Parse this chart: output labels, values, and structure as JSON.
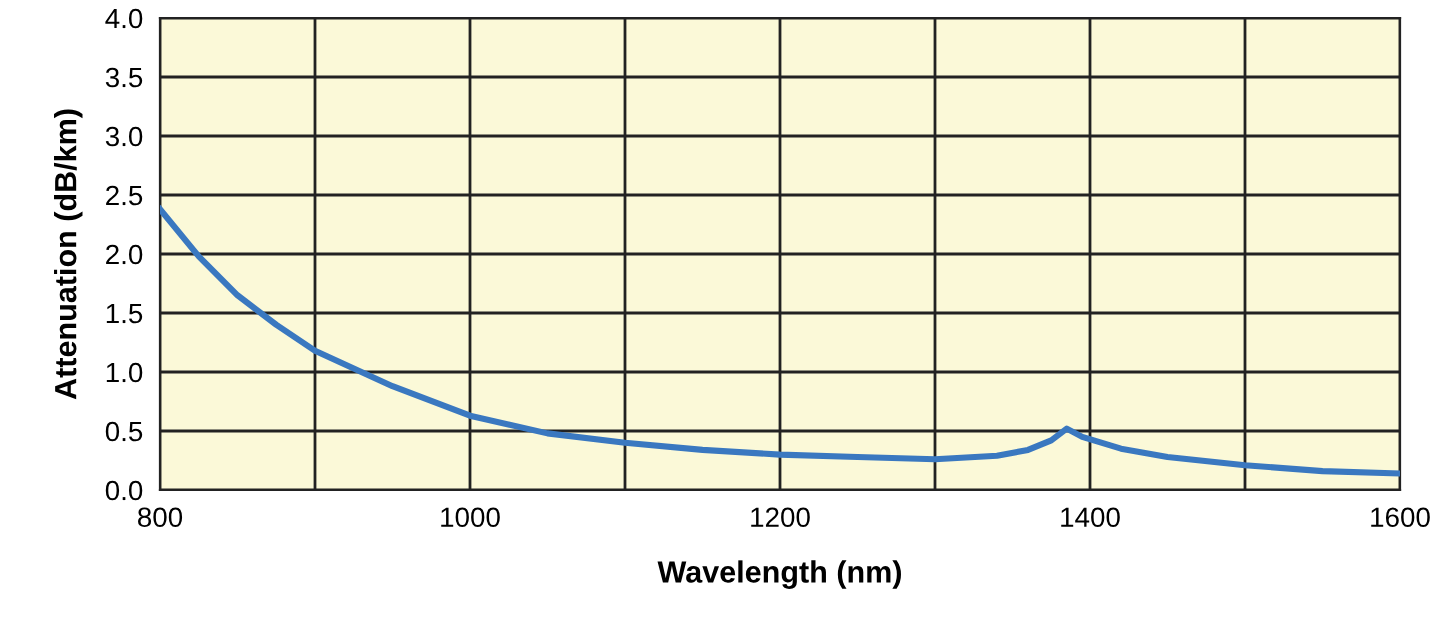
{
  "chart_data": {
    "type": "line",
    "xlabel": "Wavelength (nm)",
    "ylabel": "Attenuation (dB/km)",
    "xlim": [
      800,
      1600
    ],
    "ylim": [
      0,
      4.0
    ],
    "xticks": [
      800,
      {
        "value": 900,
        "label": null
      },
      1000,
      {
        "value": 1100,
        "label": null
      },
      1200,
      {
        "value": 1300,
        "label": null
      },
      1400,
      {
        "value": 1500,
        "label": null
      },
      1600
    ],
    "yticks": [
      {
        "value": 0,
        "label": "0.0"
      },
      0.5,
      {
        "value": 1,
        "label": "1.0"
      },
      1.5,
      {
        "value": 2,
        "label": "2.0"
      },
      2.5,
      {
        "value": 3,
        "label": "3.0"
      },
      3.5,
      {
        "value": 4,
        "label": "4.0"
      }
    ],
    "grid": true,
    "series": [
      {
        "color": "#3a78c0",
        "x": [
          800,
          825,
          850,
          875,
          900,
          950,
          1000,
          1050,
          1100,
          1150,
          1200,
          1250,
          1300,
          1340,
          1360,
          1375,
          1385,
          1395,
          1420,
          1450,
          1500,
          1550,
          1600
        ],
        "values": [
          2.38,
          1.98,
          1.65,
          1.4,
          1.18,
          0.88,
          0.63,
          0.48,
          0.4,
          0.34,
          0.3,
          0.28,
          0.26,
          0.29,
          0.34,
          0.42,
          0.52,
          0.45,
          0.35,
          0.28,
          0.21,
          0.16,
          0.14
        ]
      }
    ]
  }
}
